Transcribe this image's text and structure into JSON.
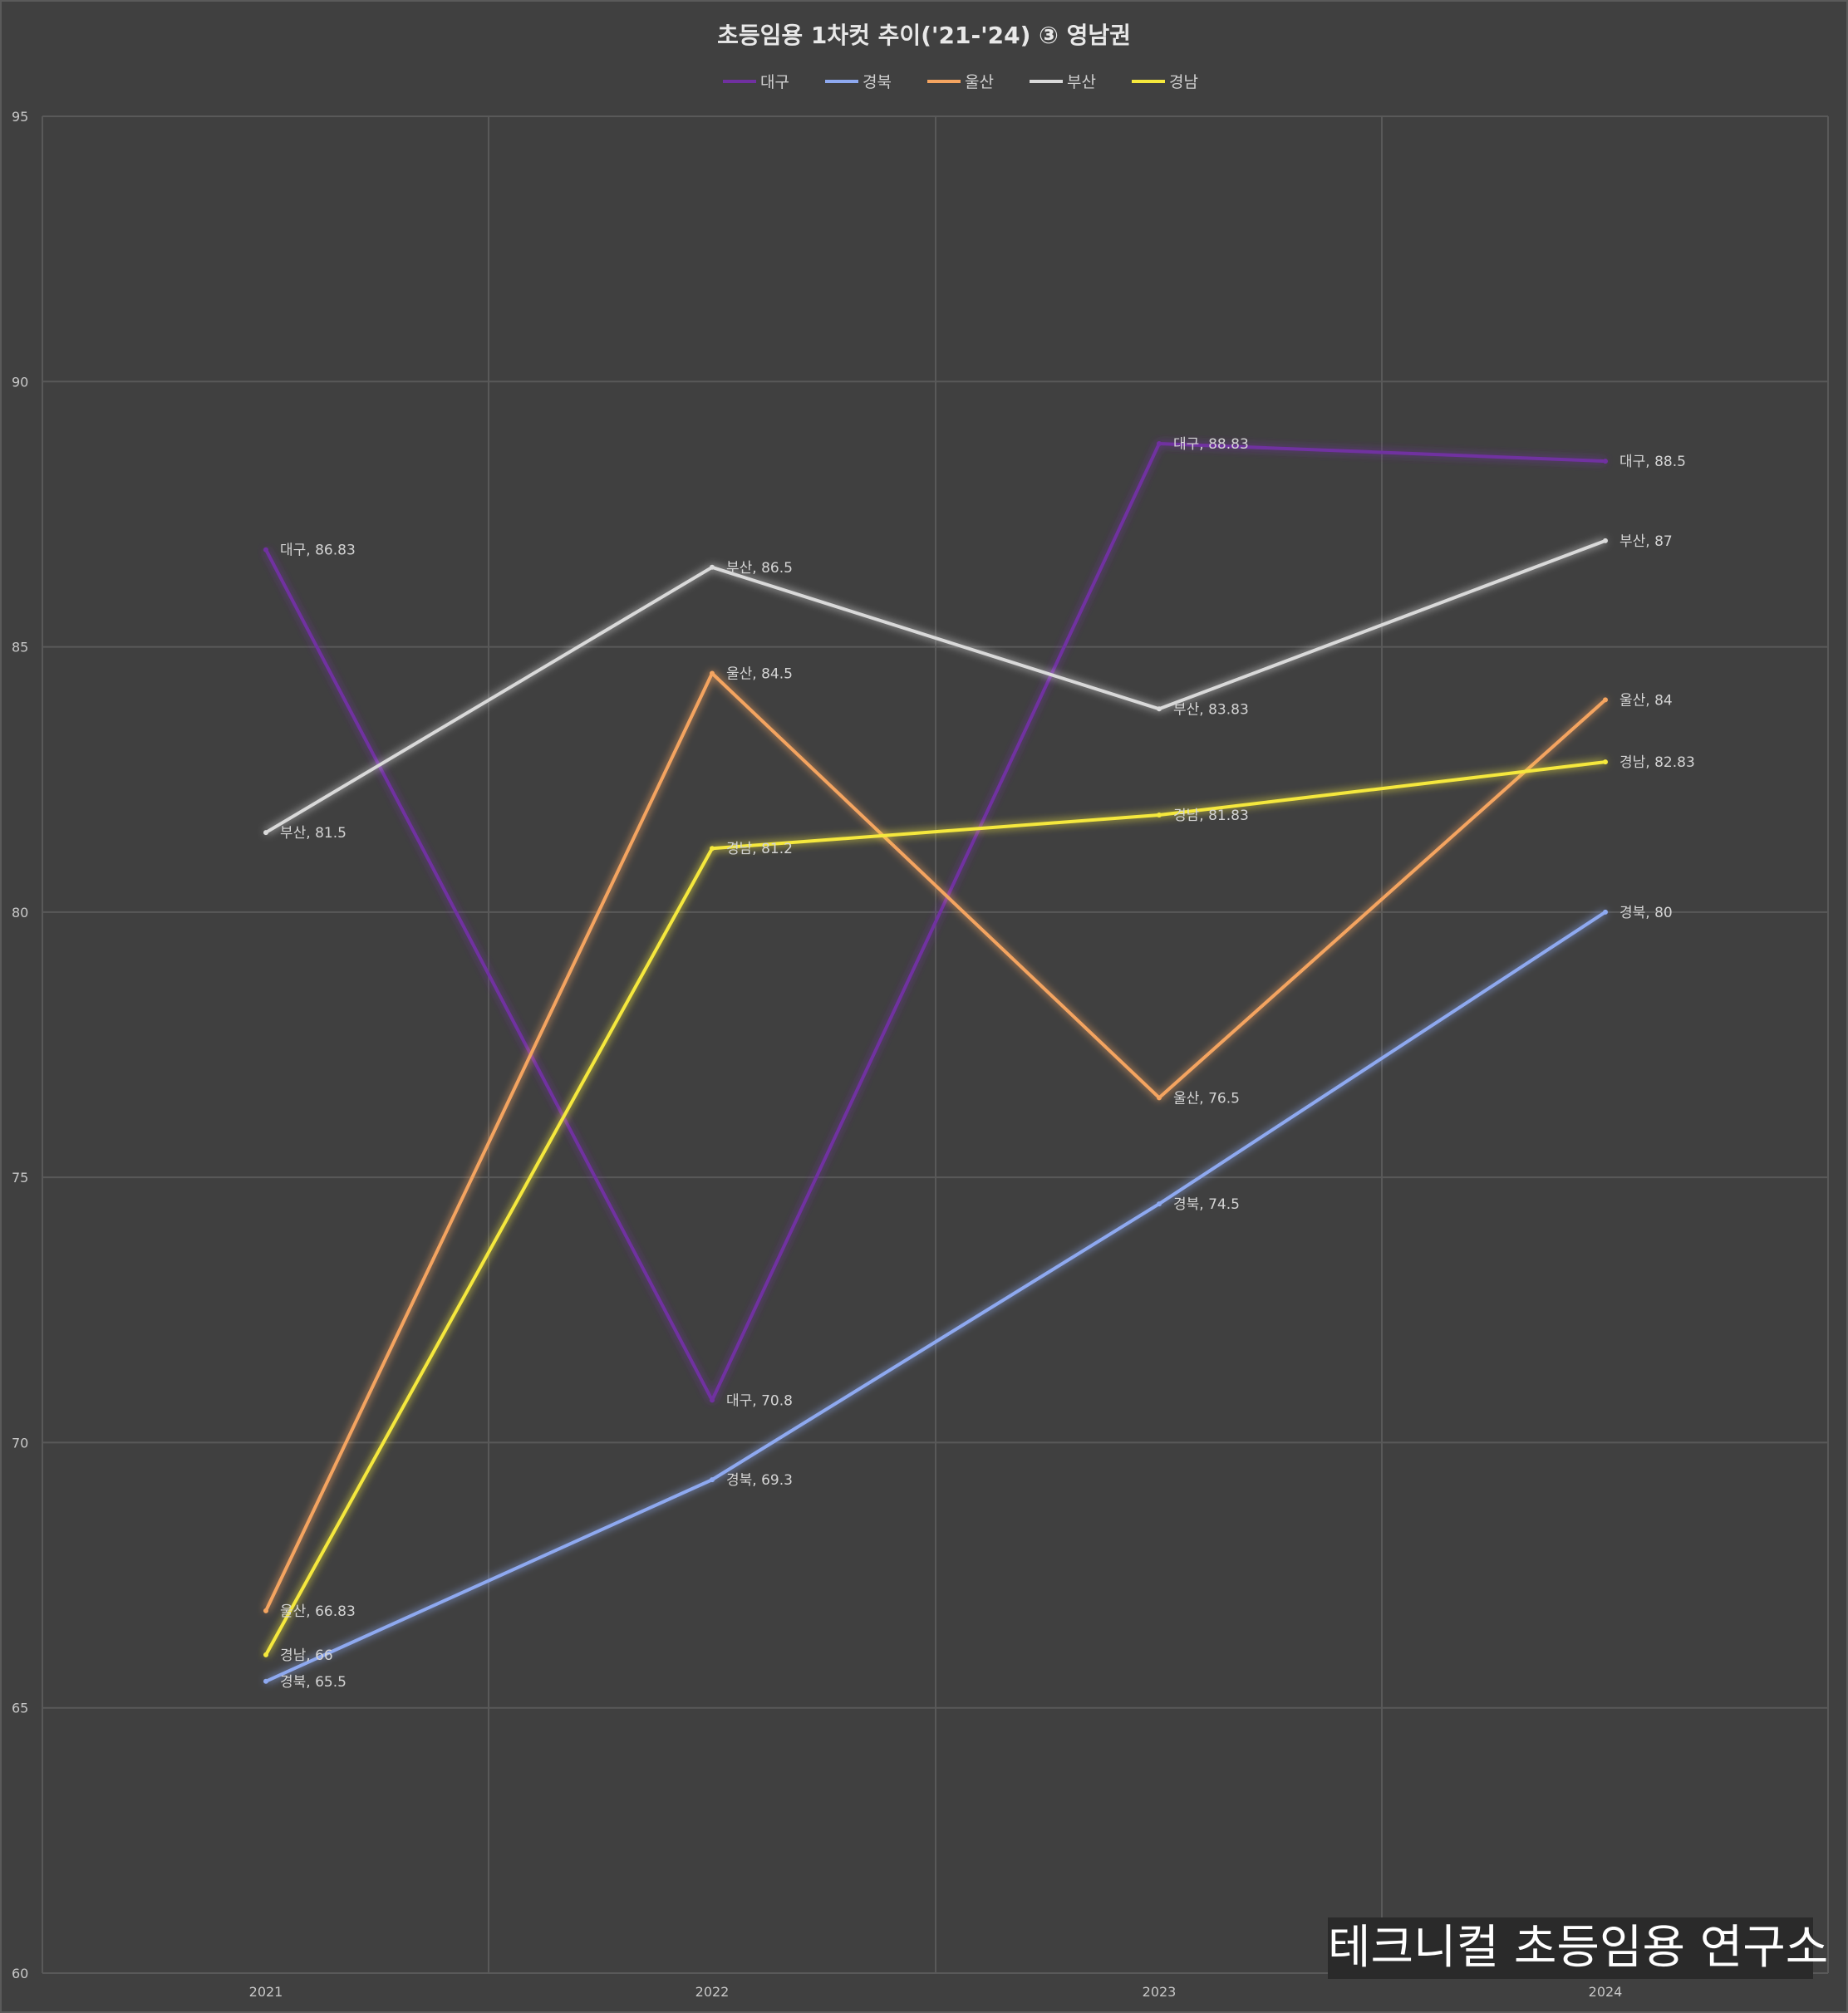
{
  "chart_data": {
    "type": "line",
    "title": "초등임용 1차컷 추이('21-'24) ③ 영남권",
    "xlabel": "",
    "ylabel": "",
    "categories": [
      "2021",
      "2022",
      "2023",
      "2024"
    ],
    "ylim": [
      60,
      95
    ],
    "yticks": [
      "60",
      "65",
      "70",
      "75",
      "80",
      "85",
      "90",
      "95"
    ],
    "grid": true,
    "legend_position": "top",
    "series": [
      {
        "name": "대구",
        "color": "#7030a0",
        "values": [
          86.83,
          70.8,
          88.83,
          88.5
        ],
        "labels": [
          "대구, 86.83",
          "대구, 70.8",
          "대구, 88.83",
          "대구, 88.5"
        ]
      },
      {
        "name": "경북",
        "color": "#8ea9f0",
        "values": [
          65.5,
          69.3,
          74.5,
          80
        ],
        "labels": [
          "경북, 65.5",
          "경북, 69.3",
          "경북, 74.5",
          "경북, 80"
        ]
      },
      {
        "name": "울산",
        "color": "#f4a460",
        "values": [
          66.83,
          84.5,
          76.5,
          84
        ],
        "labels": [
          "울산, 66.83",
          "울산, 84.5",
          "울산, 76.5",
          "울산, 84"
        ]
      },
      {
        "name": "부산",
        "color": "#d9d9d9",
        "values": [
          81.5,
          86.5,
          83.83,
          87
        ],
        "labels": [
          "부산, 81.5",
          "부산, 86.5",
          "부산, 83.83",
          "부산, 87"
        ]
      },
      {
        "name": "경남",
        "color": "#f5e83c",
        "values": [
          66,
          81.2,
          81.83,
          82.83
        ],
        "labels": [
          "경남, 66",
          "경남, 81.2",
          "경남, 81.83",
          "경남, 82.83"
        ]
      }
    ]
  },
  "watermark": "테크니컬 초등임용 연구소"
}
